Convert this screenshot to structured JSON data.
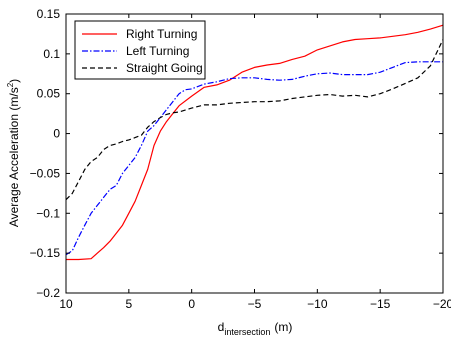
{
  "chart_data": {
    "type": "line",
    "title": "",
    "xlabel": {
      "main": "d",
      "subscript": "intersection",
      "unit": "(m)"
    },
    "ylabel": {
      "main": "Average Acceleration (m/s",
      "superscript": "2",
      "close": ")"
    },
    "xlim": [
      10,
      -20
    ],
    "ylim": [
      -0.2,
      0.15
    ],
    "x_reversed": true,
    "grid": false,
    "legend_position": "top-left",
    "xticks": [
      10,
      5,
      0,
      -5,
      -10,
      -15,
      -20
    ],
    "xtick_labels": [
      "10",
      "5",
      "0",
      "−5",
      "−10",
      "−15",
      "−20"
    ],
    "yticks": [
      -0.2,
      -0.15,
      -0.1,
      -0.05,
      0,
      0.05,
      0.1,
      0.15
    ],
    "ytick_labels": [
      "−0.2",
      "−0.15",
      "−0.1",
      "−0.05",
      "0",
      "0.05",
      "0.1",
      "0.15"
    ],
    "series": [
      {
        "name": "Right Turning",
        "color": "#ff0000",
        "dash": "solid",
        "points": [
          [
            10,
            -0.158
          ],
          [
            9,
            -0.158
          ],
          [
            8,
            -0.157
          ],
          [
            7.5,
            -0.15
          ],
          [
            7,
            -0.143
          ],
          [
            6.5,
            -0.135
          ],
          [
            6,
            -0.125
          ],
          [
            5.5,
            -0.115
          ],
          [
            5,
            -0.1
          ],
          [
            4.5,
            -0.085
          ],
          [
            4,
            -0.065
          ],
          [
            3.5,
            -0.045
          ],
          [
            3,
            -0.015
          ],
          [
            2.5,
            0.003
          ],
          [
            2,
            0.015
          ],
          [
            1.5,
            0.025
          ],
          [
            1,
            0.035
          ],
          [
            0,
            0.047
          ],
          [
            -1,
            0.058
          ],
          [
            -2,
            0.061
          ],
          [
            -3,
            0.067
          ],
          [
            -4,
            0.077
          ],
          [
            -5,
            0.083
          ],
          [
            -6,
            0.086
          ],
          [
            -7,
            0.088
          ],
          [
            -8,
            0.093
          ],
          [
            -9,
            0.097
          ],
          [
            -10,
            0.105
          ],
          [
            -11,
            0.11
          ],
          [
            -12,
            0.115
          ],
          [
            -13,
            0.118
          ],
          [
            -14,
            0.119
          ],
          [
            -15,
            0.12
          ],
          [
            -16,
            0.122
          ],
          [
            -17,
            0.124
          ],
          [
            -18,
            0.127
          ],
          [
            -19,
            0.131
          ],
          [
            -20,
            0.136
          ]
        ]
      },
      {
        "name": "Left Turning",
        "color": "#0000ff",
        "dash": "dashdot",
        "points": [
          [
            10,
            -0.152
          ],
          [
            9.5,
            -0.147
          ],
          [
            9,
            -0.13
          ],
          [
            8.5,
            -0.115
          ],
          [
            8,
            -0.1
          ],
          [
            7.5,
            -0.09
          ],
          [
            7,
            -0.08
          ],
          [
            6.5,
            -0.07
          ],
          [
            6,
            -0.065
          ],
          [
            5.5,
            -0.05
          ],
          [
            5,
            -0.04
          ],
          [
            4.5,
            -0.03
          ],
          [
            4,
            -0.015
          ],
          [
            3.5,
            0.003
          ],
          [
            3,
            0.01
          ],
          [
            2.5,
            0.02
          ],
          [
            2,
            0.03
          ],
          [
            1.5,
            0.04
          ],
          [
            1,
            0.05
          ],
          [
            0.5,
            0.055
          ],
          [
            0,
            0.056
          ],
          [
            -1,
            0.062
          ],
          [
            -2,
            0.065
          ],
          [
            -3,
            0.069
          ],
          [
            -4,
            0.07
          ],
          [
            -5,
            0.07
          ],
          [
            -6,
            0.068
          ],
          [
            -7,
            0.067
          ],
          [
            -8,
            0.068
          ],
          [
            -9,
            0.072
          ],
          [
            -10,
            0.075
          ],
          [
            -11,
            0.076
          ],
          [
            -12,
            0.074
          ],
          [
            -13,
            0.074
          ],
          [
            -14,
            0.074
          ],
          [
            -15,
            0.077
          ],
          [
            -16,
            0.083
          ],
          [
            -17,
            0.089
          ],
          [
            -18,
            0.09
          ],
          [
            -19,
            0.09
          ],
          [
            -20,
            0.09
          ]
        ]
      },
      {
        "name": "Straight Going",
        "color": "#000000",
        "dash": "dashed",
        "points": [
          [
            10,
            -0.083
          ],
          [
            9.5,
            -0.075
          ],
          [
            9,
            -0.06
          ],
          [
            8.5,
            -0.045
          ],
          [
            8,
            -0.035
          ],
          [
            7.5,
            -0.03
          ],
          [
            7,
            -0.02
          ],
          [
            6.5,
            -0.015
          ],
          [
            6,
            -0.013
          ],
          [
            5.5,
            -0.01
          ],
          [
            5,
            -0.008
          ],
          [
            4.5,
            -0.005
          ],
          [
            4,
            -0.002
          ],
          [
            3.5,
            0.008
          ],
          [
            3,
            0.015
          ],
          [
            2.5,
            0.02
          ],
          [
            2,
            0.024
          ],
          [
            1.5,
            0.026
          ],
          [
            1,
            0.027
          ],
          [
            0,
            0.032
          ],
          [
            -1,
            0.036
          ],
          [
            -2,
            0.036
          ],
          [
            -3,
            0.038
          ],
          [
            -4,
            0.039
          ],
          [
            -5,
            0.04
          ],
          [
            -6,
            0.04
          ],
          [
            -7,
            0.041
          ],
          [
            -8,
            0.044
          ],
          [
            -9,
            0.046
          ],
          [
            -10,
            0.048
          ],
          [
            -11,
            0.049
          ],
          [
            -12,
            0.047
          ],
          [
            -13,
            0.048
          ],
          [
            -14,
            0.046
          ],
          [
            -15,
            0.05
          ],
          [
            -16,
            0.056
          ],
          [
            -17,
            0.063
          ],
          [
            -18,
            0.07
          ],
          [
            -19,
            0.085
          ],
          [
            -20,
            0.118
          ]
        ]
      }
    ]
  }
}
